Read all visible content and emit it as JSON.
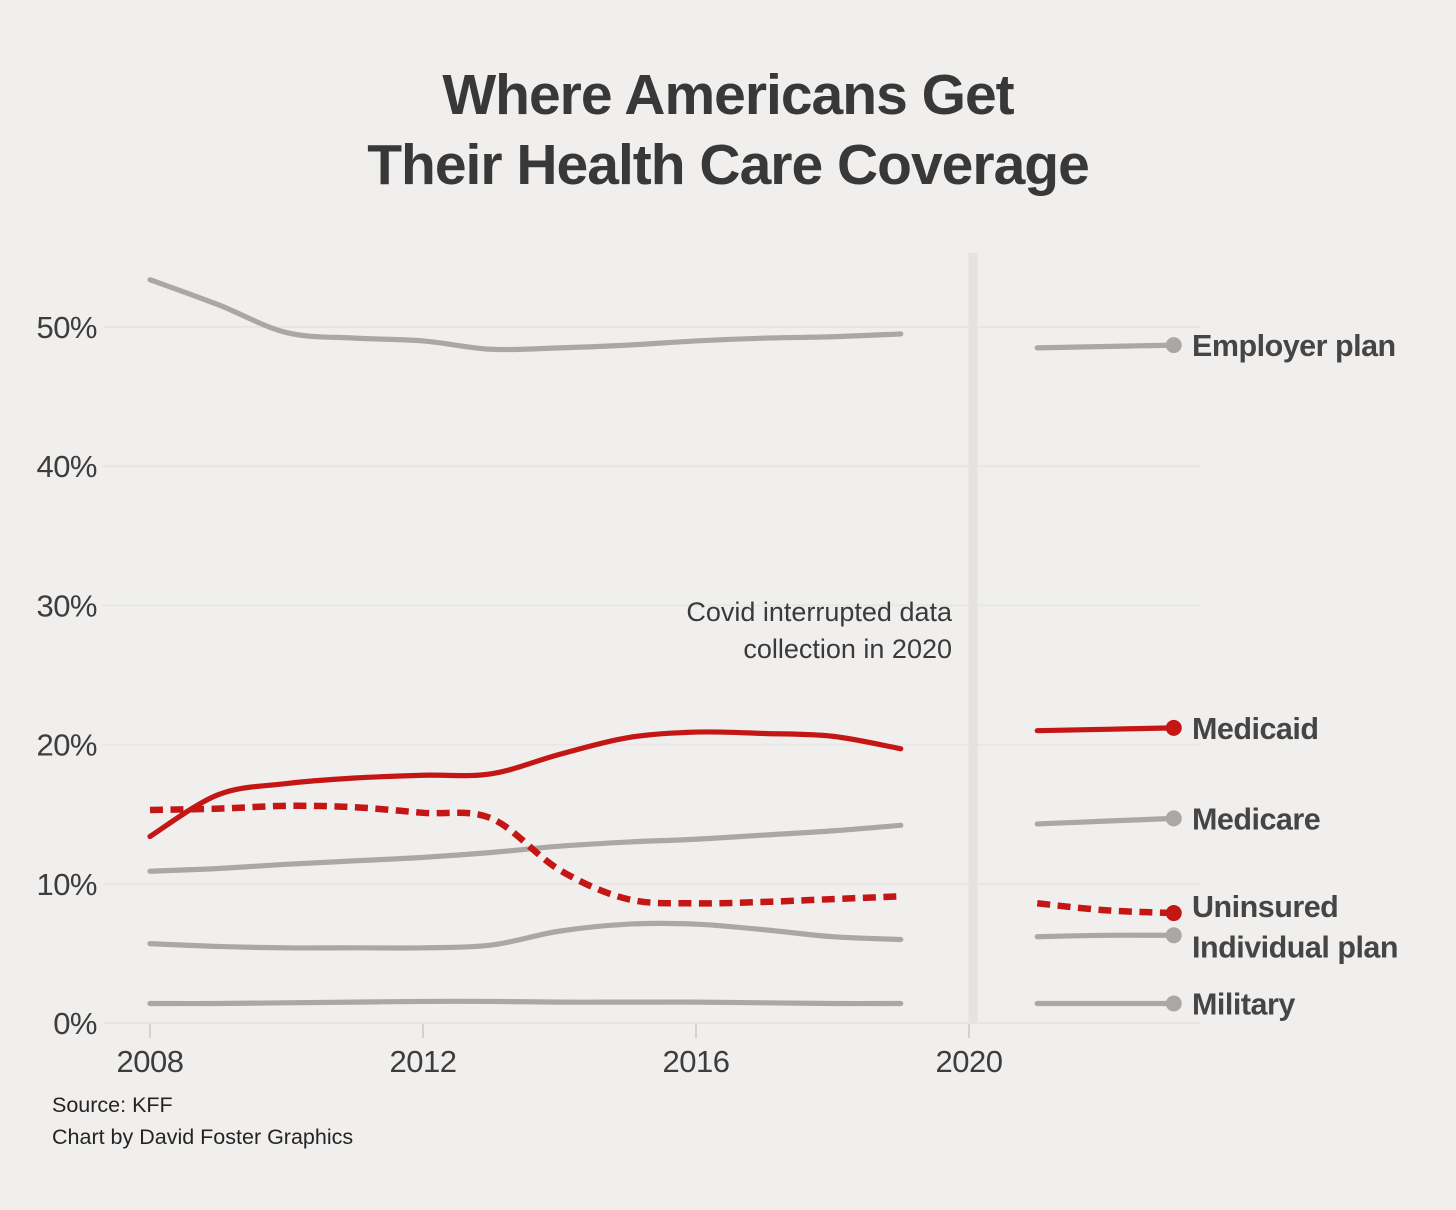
{
  "title": {
    "line1": "Where Americans Get",
    "line2": "Their Health Care Coverage"
  },
  "annotation": {
    "line1": "Covid interrupted data",
    "line2": "collection in 2020"
  },
  "source": {
    "line1": "Source: KFF",
    "line2": "Chart by David Foster Graphics"
  },
  "colors": {
    "red": "#c51616",
    "gray": "#a9a8a7",
    "series_label_text": "#454545",
    "axis_text": "#3d3d3d",
    "title_text": "#383838",
    "annotation_text": "#3a3a3a",
    "source_text": "#242424",
    "gridline": "#e7e6e4",
    "tick_mark": "#d4d3d2",
    "covid_line": "#e4e3e1",
    "background": "#f0efee"
  },
  "chart_data": {
    "type": "line",
    "title": "Where Americans Get Their Health Care Coverage",
    "xlabel": "",
    "ylabel": "",
    "grid": "horizontal",
    "legend_position": "right-of-lines",
    "ylim": [
      0,
      55.5
    ],
    "xlim": [
      2007.3,
      2023.7
    ],
    "x_ticks": [
      {
        "label": "2008",
        "value": 2008
      },
      {
        "label": "2012",
        "value": 2012
      },
      {
        "label": "2016",
        "value": 2016
      },
      {
        "label": "2020",
        "value": 2020
      }
    ],
    "y_ticks": [
      {
        "label": "0%",
        "value": 0
      },
      {
        "label": "10%",
        "value": 10
      },
      {
        "label": "20%",
        "value": 20
      },
      {
        "label": "30%",
        "value": 30
      },
      {
        "label": "40%",
        "value": 40
      },
      {
        "label": "50%",
        "value": 50
      }
    ],
    "covid_line_x": 2020,
    "x_main": [
      2008,
      2009,
      2010,
      2011,
      2012,
      2013,
      2014,
      2015,
      2016,
      2017,
      2018,
      2019
    ],
    "x_post": [
      2021,
      2022,
      2023
    ],
    "label_offsets": {
      "Uninsured": -7,
      "Individual plan": 11
    },
    "series": [
      {
        "name": "Employer plan",
        "color": "gray",
        "dash": false,
        "values": [
          53.4,
          51.6,
          49.6,
          49.2,
          49.0,
          48.4,
          48.5,
          48.7,
          49.0,
          49.2,
          49.3,
          49.5
        ],
        "post_values": [
          48.5,
          48.6,
          48.7
        ]
      },
      {
        "name": "Medicaid",
        "color": "red",
        "dash": false,
        "values": [
          13.4,
          16.4,
          17.2,
          17.6,
          17.8,
          17.9,
          19.3,
          20.5,
          20.9,
          20.8,
          20.6,
          19.7
        ],
        "post_values": [
          21.0,
          21.1,
          21.2
        ]
      },
      {
        "name": "Medicare",
        "color": "gray",
        "dash": false,
        "values": [
          10.9,
          11.1,
          11.4,
          11.65,
          11.9,
          12.25,
          12.7,
          13.0,
          13.2,
          13.5,
          13.8,
          14.2
        ],
        "post_values": [
          14.3,
          14.5,
          14.7
        ]
      },
      {
        "name": "Uninsured",
        "color": "red",
        "dash": true,
        "values": [
          15.3,
          15.4,
          15.6,
          15.5,
          15.1,
          14.7,
          11.0,
          8.9,
          8.6,
          8.7,
          8.9,
          9.1
        ],
        "post_values": [
          8.6,
          8.1,
          7.9
        ]
      },
      {
        "name": "Individual plan",
        "color": "gray",
        "dash": false,
        "values": [
          5.7,
          5.5,
          5.4,
          5.4,
          5.4,
          5.6,
          6.6,
          7.1,
          7.1,
          6.7,
          6.2,
          6.0
        ],
        "post_values": [
          6.2,
          6.3,
          6.3
        ]
      },
      {
        "name": "Military",
        "color": "gray",
        "dash": false,
        "values": [
          1.4,
          1.4,
          1.45,
          1.5,
          1.55,
          1.55,
          1.5,
          1.5,
          1.5,
          1.45,
          1.4,
          1.4
        ],
        "post_values": [
          1.4,
          1.4,
          1.4
        ]
      }
    ]
  }
}
